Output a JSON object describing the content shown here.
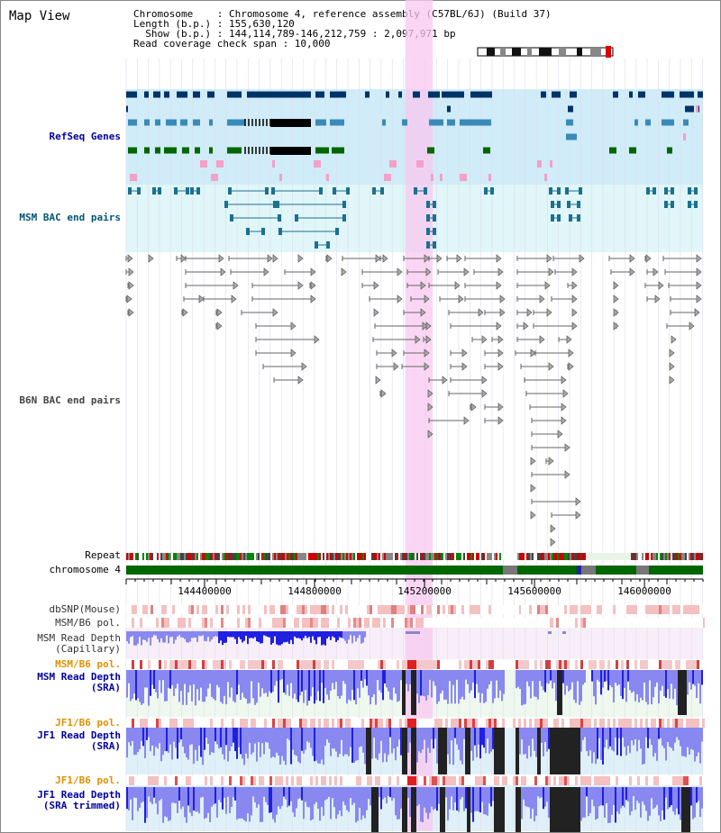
{
  "title": "Map View",
  "info": {
    "lines": [
      "Chromosome    : Chromosome 4, reference assembly (C57BL/6J) (Build 37)",
      "Length (b.p.) : 155,630,120",
      "  Show (b.p.) : 144,114,789-146,212,759 : 2,097,971 bp",
      "Read coverage check span : 10,000"
    ]
  },
  "tracks": {
    "refseq": "RefSeq Genes",
    "msm_bac": "MSM BAC end pairs",
    "b6n_bac": "B6N BAC end pairs",
    "repeat": "Repeat",
    "chromosome": "chromosome 4",
    "dbsnp": "dbSNP(Mouse)",
    "msm_b6_pol": "MSM/B6 pol.",
    "msm_depth_cap": [
      "MSM Read Depth",
      "(Capillary)"
    ],
    "msm_b6_pol2": "MSM/B6 pol.",
    "msm_depth_sra": [
      "MSM Read Depth",
      "(SRA)"
    ],
    "jf1_b6_pol": "JF1/B6 pol.",
    "jf1_depth_sra": [
      "JF1 Read Depth",
      "(SRA)"
    ],
    "jf1_b6_pol2": "JF1/B6 pol.",
    "jf1_depth_trim": [
      "JF1 Read Depth",
      "(SRA trimmed)"
    ]
  },
  "axis": {
    "ticks": [
      {
        "value": 144400000,
        "label": "144400000"
      },
      {
        "value": 144800000,
        "label": "144800000"
      },
      {
        "value": 145200000,
        "label": "145200000"
      },
      {
        "value": 145600000,
        "label": "145600000"
      },
      {
        "value": 146000000,
        "label": "146000000"
      }
    ],
    "start": 144114789,
    "end": 146212759
  },
  "highlight": {
    "start": 145130000,
    "end": 145230000
  },
  "colors": {
    "refseq_bg": "#d0ecf8",
    "msm_bg": "#e0f6f8",
    "highlight": "#f8c8f0",
    "gene_dark": "#003366",
    "gene_mid": "#3a8ab8",
    "gene_green": "#006600",
    "chrom_green": "#006600",
    "snp_pink": "#f4b4b4",
    "depth_blue": "#2020e0",
    "depth_light": "#8888f0",
    "pol_orange": "#e0a000",
    "label_blue": "#0000a0"
  }
}
